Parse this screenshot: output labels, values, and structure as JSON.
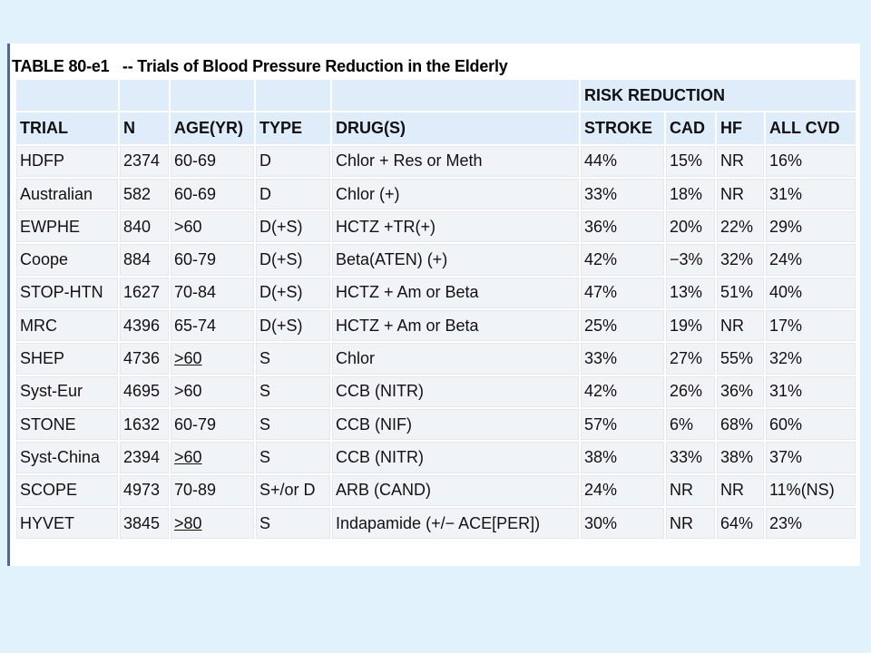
{
  "caption": "TABLE 80-e1   -- Trials of Blood Pressure Reduction in the Elderly",
  "header": {
    "group_label": "RISK REDUCTION",
    "columns": [
      "TRIAL",
      "N",
      "AGE(YR)",
      "TYPE",
      "DRUG(S)",
      "STROKE",
      "CAD",
      "HF",
      "ALL CVD"
    ]
  },
  "rows": [
    [
      "HDFP",
      "2374",
      "60-69",
      "D",
      "Chlor + Res or Meth",
      "44%",
      "15%",
      "NR",
      "16%"
    ],
    [
      "Australian",
      "582",
      "60-69",
      "D",
      "Chlor (+)",
      "33%",
      "18%",
      "NR",
      "31%"
    ],
    [
      "EWPHE",
      "840",
      ">60",
      "D(+S)",
      "HCTZ +TR(+)",
      "36%",
      "20%",
      "22%",
      "29%"
    ],
    [
      "Coope",
      "884",
      "60-79",
      "D(+S)",
      "Beta(ATEN) (+)",
      "42%",
      "−3%",
      "32%",
      "24%"
    ],
    [
      "STOP-HTN",
      "1627",
      "70-84",
      "D(+S)",
      "HCTZ + Am or Beta",
      "47%",
      "13%",
      "51%",
      "40%"
    ],
    [
      "MRC",
      "4396",
      "65-74",
      "D(+S)",
      "HCTZ + Am or Beta",
      "25%",
      "19%",
      "NR",
      "17%"
    ],
    [
      "SHEP",
      "4736",
      ">60",
      "S",
      "Chlor",
      "33%",
      "27%",
      "55%",
      "32%"
    ],
    [
      "Syst-Eur",
      "4695",
      ">60",
      "S",
      "CCB (NITR)",
      "42%",
      "26%",
      "36%",
      "31%"
    ],
    [
      "STONE",
      "1632",
      "60-79",
      "S",
      "CCB (NIF)",
      "57%",
      "6%",
      "68%",
      "60%"
    ],
    [
      "Syst-China",
      "2394",
      ">60",
      "S",
      "CCB (NITR)",
      "38%",
      "33%",
      "38%",
      "37%"
    ],
    [
      "SCOPE",
      "4973",
      "70-89",
      "S+/or D",
      "ARB (CAND)",
      "24%",
      "NR",
      "NR",
      "11%(NS)"
    ],
    [
      "HYVET",
      "3845",
      ">80",
      "S",
      "Indapamide (+/− ACE[PER])",
      "30%",
      "NR",
      "64%",
      "23%"
    ]
  ],
  "underlined_age_rows": [
    6,
    9,
    11
  ],
  "colors": {
    "background": "#e2f2fd",
    "header_fill": "#deedf9",
    "cell_fill": "#f1f4f7",
    "left_rule": "#4a6a9a"
  }
}
